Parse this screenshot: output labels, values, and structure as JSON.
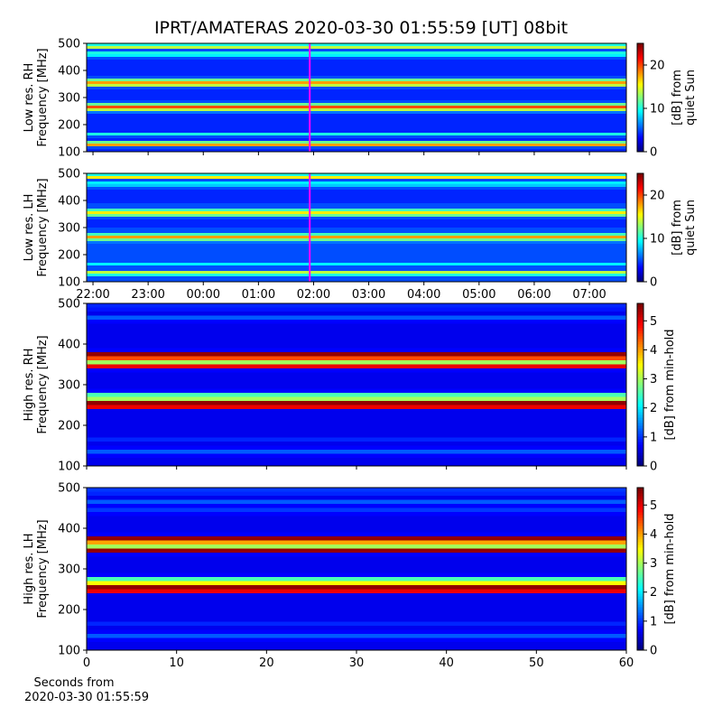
{
  "figure": {
    "title": "IPRT/AMATERAS 2020-03-30 01:55:59 [UT]   08bit",
    "xlabel": [
      "Seconds from",
      "2020-03-30 01:55:59"
    ]
  },
  "chart_data": [
    {
      "type": "heatmap",
      "ylabel": [
        "Low res. RH",
        "Frequency [MHz]"
      ],
      "clabel": [
        "[dB] from",
        "quiet Sun"
      ],
      "xlim": [
        21.885,
        31.67
      ],
      "xticks": [
        22,
        23,
        24,
        25,
        26,
        27,
        28,
        29,
        30,
        31
      ],
      "ylim": [
        100,
        500
      ],
      "yticks": [
        100,
        200,
        300,
        400,
        500
      ],
      "clim": [
        0,
        25
      ],
      "cticks": [
        0,
        10,
        20
      ],
      "marker_x": 25.93,
      "marker_color": "#ff00ff",
      "y": [
        100,
        110,
        120,
        130,
        140,
        150,
        160,
        170,
        180,
        190,
        200,
        210,
        220,
        230,
        240,
        250,
        260,
        270,
        280,
        290,
        300,
        310,
        320,
        330,
        340,
        350,
        360,
        370,
        380,
        390,
        400,
        410,
        420,
        430,
        440,
        450,
        460,
        470,
        480,
        490,
        500
      ],
      "values": [
        4,
        5,
        18,
        12,
        4,
        5,
        10,
        4,
        4,
        4,
        4,
        4,
        4,
        4,
        6,
        14,
        20,
        12,
        5,
        4,
        4,
        4,
        4,
        5,
        14,
        18,
        12,
        5,
        4,
        4,
        4,
        4,
        4,
        4,
        5,
        9,
        10,
        5,
        14,
        10
      ]
    },
    {
      "type": "heatmap",
      "ylabel": [
        "Low res. LH",
        "Frequency [MHz]"
      ],
      "clabel": [
        "[dB] from",
        "quiet Sun"
      ],
      "xlim": [
        21.885,
        31.67
      ],
      "xticks": [
        {
          "value": 22,
          "label": "22:00"
        },
        {
          "value": 23,
          "label": "23:00"
        },
        {
          "value": 24,
          "label": "00:00"
        },
        {
          "value": 25,
          "label": "01:00"
        },
        {
          "value": 26,
          "label": "02:00"
        },
        {
          "value": 27,
          "label": "03:00"
        },
        {
          "value": 28,
          "label": "04:00"
        },
        {
          "value": 29,
          "label": "05:00"
        },
        {
          "value": 30,
          "label": "06:00"
        },
        {
          "value": 31,
          "label": "07:00"
        }
      ],
      "ylim": [
        100,
        500
      ],
      "yticks": [
        100,
        200,
        300,
        400,
        500
      ],
      "clim": [
        0,
        25
      ],
      "cticks": [
        0,
        10,
        20
      ],
      "marker_x": 25.93,
      "marker_color": "#ff00ff",
      "y": [
        100,
        110,
        120,
        130,
        140,
        150,
        160,
        170,
        180,
        190,
        200,
        210,
        220,
        230,
        240,
        250,
        260,
        270,
        280,
        290,
        300,
        310,
        320,
        330,
        340,
        350,
        360,
        370,
        380,
        390,
        400,
        410,
        420,
        430,
        440,
        450,
        460,
        470,
        480,
        490,
        500
      ],
      "values": [
        5,
        5,
        10,
        14,
        5,
        5,
        9,
        5,
        5,
        5,
        5,
        5,
        5,
        5,
        6,
        12,
        18,
        11,
        5,
        5,
        4,
        4,
        4,
        5,
        12,
        16,
        11,
        5,
        5,
        4,
        4,
        4,
        4,
        4,
        5,
        8,
        9,
        5,
        16,
        10
      ]
    },
    {
      "type": "heatmap",
      "ylabel": [
        "High res. RH",
        "Frequency [MHz]"
      ],
      "clabel": [
        "[dB] from min-hold"
      ],
      "xlim": [
        0,
        60
      ],
      "xticks": [
        0,
        10,
        20,
        30,
        40,
        50,
        60
      ],
      "ylim": [
        100,
        500
      ],
      "yticks": [
        100,
        200,
        300,
        400,
        500
      ],
      "clim": [
        0,
        5.6
      ],
      "cticks": [
        0,
        1,
        2,
        3,
        4,
        5
      ],
      "y": [
        100,
        110,
        120,
        130,
        140,
        150,
        160,
        170,
        180,
        190,
        200,
        210,
        220,
        230,
        240,
        250,
        260,
        270,
        280,
        290,
        300,
        310,
        320,
        330,
        340,
        350,
        360,
        370,
        380,
        390,
        400,
        410,
        420,
        430,
        440,
        450,
        460,
        470,
        480,
        490,
        500
      ],
      "values": [
        0.6,
        0.6,
        0.7,
        1.2,
        0.7,
        0.6,
        0.9,
        0.6,
        0.6,
        0.6,
        0.6,
        0.6,
        0.6,
        0.6,
        5,
        5.5,
        3,
        2.5,
        0.7,
        0.6,
        0.6,
        0.6,
        0.6,
        0.7,
        5,
        3,
        4.5,
        5.5,
        0.7,
        0.6,
        0.6,
        0.6,
        0.6,
        0.6,
        0.6,
        0.7,
        1.2,
        0.6,
        0.8,
        0.9
      ]
    },
    {
      "type": "heatmap",
      "ylabel": [
        "High res. LH",
        "Frequency [MHz]"
      ],
      "clabel": [
        "[dB] from min-hold"
      ],
      "xlim": [
        0,
        60
      ],
      "xticks": [
        0,
        10,
        20,
        30,
        40,
        50,
        60
      ],
      "ylim": [
        100,
        500
      ],
      "yticks": [
        100,
        200,
        300,
        400,
        500
      ],
      "clim": [
        0,
        5.6
      ],
      "cticks": [
        0,
        1,
        2,
        3,
        4,
        5
      ],
      "y": [
        100,
        110,
        120,
        130,
        140,
        150,
        160,
        170,
        180,
        190,
        200,
        210,
        220,
        230,
        240,
        250,
        260,
        270,
        280,
        290,
        300,
        310,
        320,
        330,
        340,
        350,
        360,
        370,
        380,
        390,
        400,
        410,
        420,
        430,
        440,
        450,
        460,
        470,
        480,
        490,
        500
      ],
      "values": [
        0.6,
        0.6,
        0.7,
        1.2,
        0.7,
        0.6,
        0.9,
        0.6,
        0.6,
        0.6,
        0.6,
        0.6,
        0.6,
        0.6,
        5,
        5.5,
        3.5,
        2.5,
        0.7,
        0.6,
        0.6,
        0.6,
        0.6,
        0.7,
        5.5,
        3,
        4,
        5.5,
        0.7,
        0.6,
        0.6,
        0.6,
        0.6,
        0.7,
        1,
        0.7,
        1.2,
        0.6,
        0.9,
        1
      ]
    }
  ]
}
